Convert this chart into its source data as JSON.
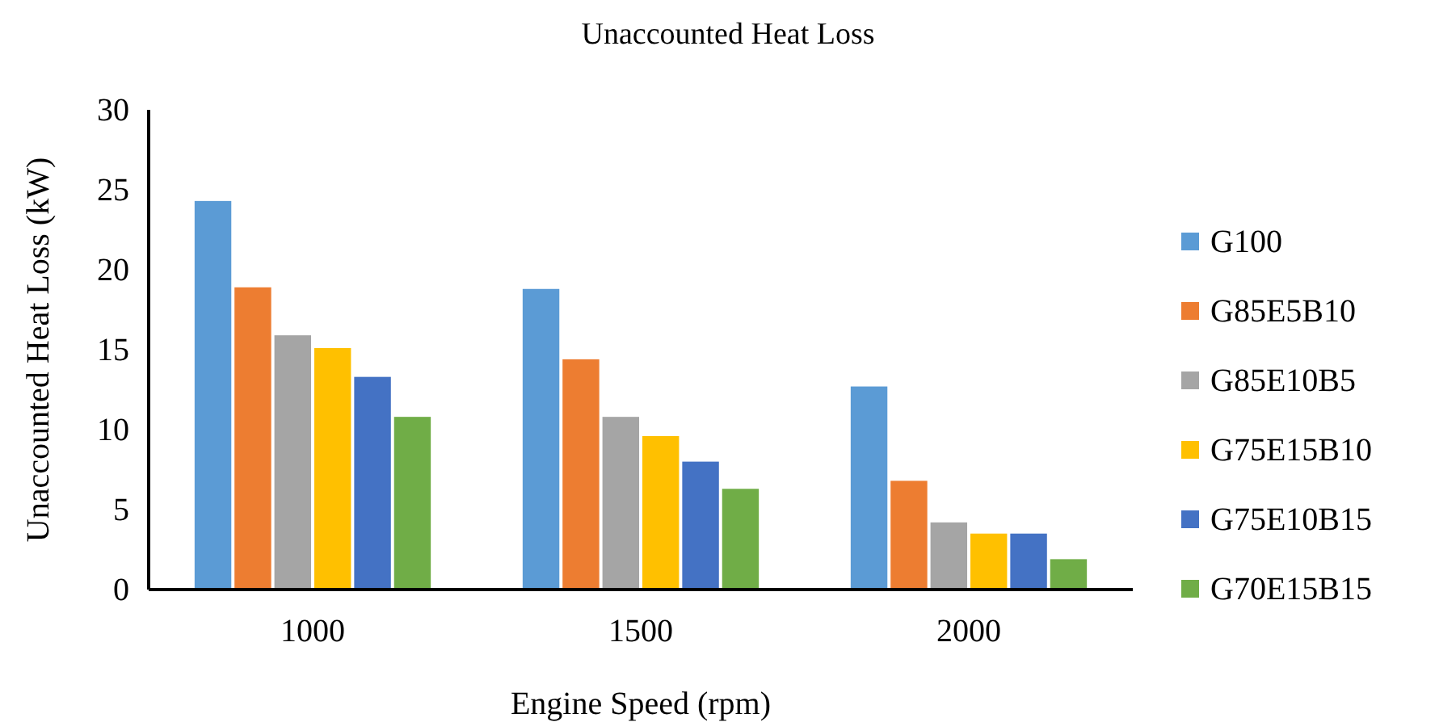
{
  "chart_data": {
    "type": "bar",
    "title": "Unaccounted Heat Loss",
    "xlabel": "Engine Speed (rpm)",
    "ylabel": "Unaccounted Heat Loss (kW)",
    "categories": [
      "1000",
      "1500",
      "2000"
    ],
    "series": [
      {
        "name": "G100",
        "color": "#5b9bd5",
        "values": [
          24.3,
          18.8,
          12.7
        ]
      },
      {
        "name": "G85E5B10",
        "color": "#ed7d31",
        "values": [
          18.9,
          14.4,
          6.8
        ]
      },
      {
        "name": "G85E10B5",
        "color": "#a5a5a5",
        "values": [
          15.9,
          10.8,
          4.2
        ]
      },
      {
        "name": "G75E15B10",
        "color": "#ffc000",
        "values": [
          15.1,
          9.6,
          3.5
        ]
      },
      {
        "name": "G75E10B15",
        "color": "#4472c4",
        "values": [
          13.3,
          8.0,
          3.5
        ]
      },
      {
        "name": "G70E15B15",
        "color": "#70ad47",
        "values": [
          10.8,
          6.3,
          1.9
        ]
      }
    ],
    "ylim": [
      0,
      30
    ],
    "yticks": [
      0,
      5,
      10,
      15,
      20,
      25,
      30
    ],
    "grid": false,
    "legend": "right"
  }
}
